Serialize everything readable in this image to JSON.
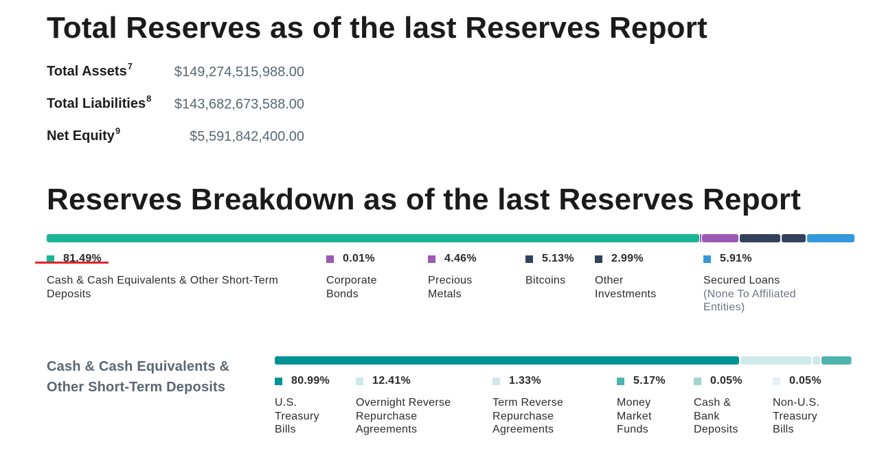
{
  "headings": {
    "total_reserves": "Total Reserves as of the last Reserves Report",
    "breakdown": "Reserves Breakdown as of the last Reserves Report"
  },
  "financials": [
    {
      "label": "Total Assets",
      "footnote": "7",
      "value": "$149,274,515,988.00"
    },
    {
      "label": "Total Liabilities",
      "footnote": "8",
      "value": "$143,682,673,588.00"
    },
    {
      "label": "Net Equity",
      "footnote": "9",
      "value": "$5,591,842,400.00"
    }
  ],
  "breakdown": [
    {
      "percent": "81.49%",
      "label": "Cash & Cash Equivalents & Other Short-Term Deposits",
      "color": "#1bb596"
    },
    {
      "percent": "0.01%",
      "label": "Corporate Bonds",
      "color": "#9b59b6"
    },
    {
      "percent": "4.46%",
      "label": "Precious Metals",
      "color": "#9b59b6"
    },
    {
      "percent": "5.13%",
      "label": "Bitcoins",
      "color": "#33415c"
    },
    {
      "percent": "2.99%",
      "label": "Other Investments",
      "color": "#33415c"
    },
    {
      "percent": "5.91%",
      "label": "Secured Loans",
      "sublabel": "(None To Affiliated Entities)",
      "color": "#3498db"
    }
  ],
  "cash_section": {
    "title": "Cash & Cash Equivalents & Other Short-Term Deposits",
    "items": [
      {
        "percent": "80.99%",
        "label": "U.S. Treasury Bills",
        "color": "#009393"
      },
      {
        "percent": "12.41%",
        "label": "Overnight Reverse Repurchase Agreements",
        "color": "#cfe9ea"
      },
      {
        "percent": "1.33%",
        "label": "Term Reverse Repurchase Agreements",
        "color": "#cfe9ea"
      },
      {
        "percent": "5.17%",
        "label": "Money Market Funds",
        "color": "#4fb3ad"
      },
      {
        "percent": "0.05%",
        "label": "Cash & Bank Deposits",
        "color": "#9fd6d3"
      },
      {
        "percent": "0.05%",
        "label": "Non-U.S. Treasury Bills",
        "color": "#e3f3f3"
      }
    ]
  }
}
